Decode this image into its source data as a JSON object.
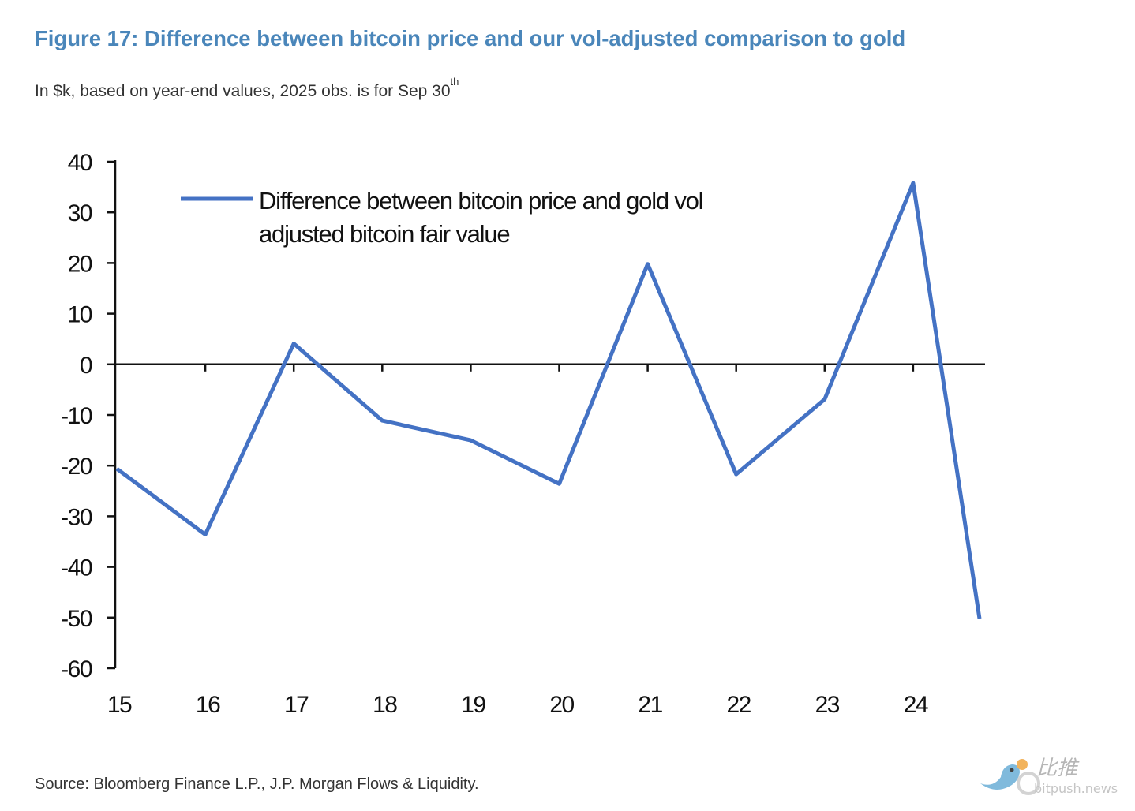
{
  "title": "Figure 17: Difference between bitcoin price and our vol-adjusted comparison to gold",
  "subtitle": "In $k, based on year-end values, 2025 obs. is for Sep 30",
  "subtitle_sup": "th",
  "source": "Source: Bloomberg Finance L.P., J.P. Morgan Flows & Liquidity.",
  "watermark": {
    "text_cn": "比推",
    "text_en": "bitpush.news"
  },
  "chart_data": {
    "type": "line",
    "title": "Figure 17: Difference between bitcoin price and our vol-adjusted comparison to gold",
    "xlabel": "",
    "ylabel": "",
    "ylim": [
      -60,
      40
    ],
    "yticks": [
      "40",
      "30",
      "20",
      "10",
      "0",
      "-10",
      "-20",
      "-30",
      "-40",
      "-50",
      "-60"
    ],
    "xticks": [
      "15",
      "16",
      "17",
      "18",
      "19",
      "20",
      "21",
      "22",
      "23",
      "24"
    ],
    "legend_position": "top-left",
    "grid": false,
    "series": [
      {
        "name": "Difference between bitcoin price and gold vol adjusted bitcoin fair value",
        "legend_lines": [
          "Difference between bitcoin price and gold vol",
          "adjusted bitcoin fair value"
        ],
        "color": "#4472c4",
        "x": [
          15,
          16,
          17,
          18,
          19,
          20,
          21,
          22,
          23,
          24,
          24.75
        ],
        "values": [
          -20.6,
          -33.6,
          4.1,
          -11.1,
          -15.0,
          -23.6,
          19.8,
          -21.7,
          -6.9,
          35.8,
          -50.2
        ]
      }
    ]
  }
}
